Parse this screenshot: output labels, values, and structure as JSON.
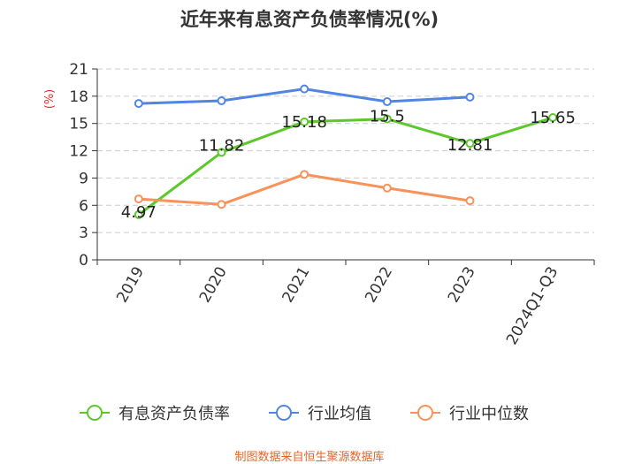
{
  "chart_data": {
    "type": "line",
    "title": "近年来有息资产负债率情况(%)",
    "ylabel": "(%)",
    "categories": [
      "2019",
      "2020",
      "2021",
      "2022",
      "2023",
      "2024Q1-Q3"
    ],
    "ylim": [
      0,
      21
    ],
    "yticks": [
      0,
      3,
      6,
      9,
      12,
      15,
      18,
      21
    ],
    "grid": true,
    "legend_position": "bottom",
    "series": [
      {
        "name": "有息资产负债率",
        "color": "#5cc82c",
        "values": [
          4.97,
          11.82,
          15.18,
          15.5,
          12.81,
          15.65
        ],
        "labels": [
          "4.97",
          "11.82",
          "15.18",
          "15.5",
          "12.81",
          "15.65"
        ]
      },
      {
        "name": "行业均值",
        "color": "#5085e4",
        "values": [
          17.2,
          17.5,
          18.8,
          17.4,
          17.9,
          null
        ]
      },
      {
        "name": "行业中位数",
        "color": "#f7925a",
        "values": [
          6.7,
          6.1,
          9.4,
          7.9,
          6.5,
          null
        ]
      }
    ]
  },
  "source": "制图数据来自恒生聚源数据库"
}
